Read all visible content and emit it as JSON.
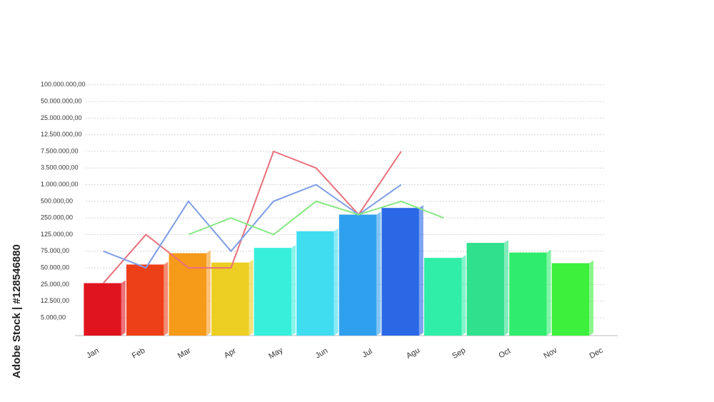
{
  "chart_data": {
    "type": "bar",
    "side_text": "Adobe Stock | #128546880",
    "categories": [
      "Jan",
      "Feb",
      "Mar",
      "Apr",
      "May",
      "Jun",
      "Jul",
      "Agu",
      "Sep",
      "Oct",
      "Nov",
      "Dec"
    ],
    "values": [
      27000,
      55000,
      72000,
      58000,
      85000,
      150000,
      300000,
      400000,
      65000,
      100000,
      73000,
      57000
    ],
    "colors": [
      "#e0141e",
      "#ee4018",
      "#f69a1a",
      "#eccf22",
      "#38efdc",
      "#40dcf0",
      "#2fa0ee",
      "#2a68e6",
      "#30eea8",
      "#30e08c",
      "#30ec6c",
      "#3cf03c"
    ],
    "lines": [
      {
        "color": "#e8707a",
        "values": [
          27000,
          125000,
          50000,
          50000,
          7500000,
          3500000,
          300000,
          7500000,
          null,
          null,
          null,
          null
        ]
      },
      {
        "color": "#7e9ee6",
        "values": [
          75000,
          50000,
          500000,
          75000,
          500000,
          1000000,
          300000,
          1000000,
          null,
          null,
          null,
          null
        ]
      },
      {
        "color": "#86e882",
        "values": [
          null,
          null,
          125000,
          250000,
          125000,
          500000,
          300000,
          500000,
          250000,
          null,
          null,
          null
        ]
      }
    ],
    "ylim": [
      0,
      100000000
    ],
    "yticks": [
      {
        "value": 5000,
        "label": "5.000,00"
      },
      {
        "value": 12500,
        "label": "12.500,00"
      },
      {
        "value": 25000,
        "label": "25.000,00"
      },
      {
        "value": 50000,
        "label": "50.000,00"
      },
      {
        "value": 75000,
        "label": "75.000,00"
      },
      {
        "value": 125000,
        "label": "125.000,00"
      },
      {
        "value": 250000,
        "label": "250.000,00"
      },
      {
        "value": 500000,
        "label": "500.000,00"
      },
      {
        "value": 1000000,
        "label": "1.000.000,00"
      },
      {
        "value": 3500000,
        "label": "3.500.000,00"
      },
      {
        "value": 7500000,
        "label": "7.500.000,00"
      },
      {
        "value": 12500000,
        "label": "12.500.000,00"
      },
      {
        "value": 25000000,
        "label": "25.000.000,00"
      },
      {
        "value": 50000000,
        "label": "50.000.000,00"
      },
      {
        "value": 100000000,
        "label": "100.000.000,00"
      }
    ],
    "grid": true
  }
}
